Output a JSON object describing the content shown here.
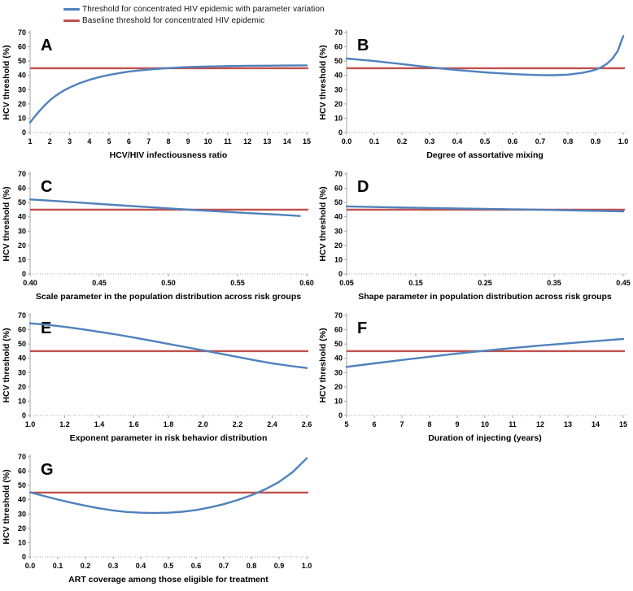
{
  "colors": {
    "variation_line": "#4F81BD",
    "baseline_line": "#C0504D",
    "axis": "#A6A6A6",
    "text": "#000000"
  },
  "legend": {
    "items": [
      {
        "name": "variation",
        "label": "Threshold for concentrated HIV epidemic with parameter variation",
        "color": "#4F81BD"
      },
      {
        "name": "baseline",
        "label": "Baseline threshold for concentrated HIV epidemic",
        "color": "#C0504D"
      }
    ]
  },
  "chart_data": [
    {
      "panel": "A",
      "type": "line",
      "xlabel": "HCV/HIV infectiousness ratio",
      "ylabel": "HCV threshold (%)",
      "xlim": [
        1,
        15
      ],
      "ylim": [
        0,
        70
      ],
      "xticks": [
        "1",
        "2",
        "3",
        "4",
        "5",
        "6",
        "7",
        "8",
        "9",
        "10",
        "11",
        "12",
        "13",
        "14",
        "15"
      ],
      "yticks": [
        "0",
        "10",
        "20",
        "30",
        "40",
        "50",
        "60",
        "70"
      ],
      "baseline": 45,
      "curve": {
        "x": [
          1,
          1.25,
          1.5,
          1.75,
          2,
          2.25,
          2.5,
          2.75,
          3,
          3.5,
          4,
          4.5,
          5,
          5.5,
          6,
          6.5,
          7,
          7.5,
          8,
          9,
          10,
          11,
          12,
          13,
          14,
          15
        ],
        "y": [
          7,
          11.5,
          15.5,
          19.2,
          22.5,
          25.3,
          27.6,
          29.7,
          31.5,
          34.5,
          36.9,
          38.8,
          40.3,
          41.6,
          42.6,
          43.4,
          44.1,
          44.7,
          45.1,
          45.8,
          46.2,
          46.5,
          46.7,
          46.8,
          46.9,
          47
        ]
      }
    },
    {
      "panel": "B",
      "type": "line",
      "xlabel": "Degree of assortative mixing",
      "ylabel": "HCV threshold (%)",
      "xlim": [
        0,
        1
      ],
      "ylim": [
        0,
        70
      ],
      "xticks": [
        "0.0",
        "0.1",
        "0.2",
        "0.3",
        "0.4",
        "0.5",
        "0.6",
        "0.7",
        "0.8",
        "0.9",
        "1.0"
      ],
      "yticks": [
        "0",
        "10",
        "20",
        "30",
        "40",
        "50",
        "60",
        "70"
      ],
      "baseline": 45,
      "curve": {
        "x": [
          0,
          0.05,
          0.1,
          0.15,
          0.2,
          0.25,
          0.3,
          0.35,
          0.4,
          0.45,
          0.5,
          0.55,
          0.6,
          0.65,
          0.7,
          0.75,
          0.8,
          0.85,
          0.88,
          0.9,
          0.92,
          0.94,
          0.96,
          0.98,
          1.0
        ],
        "y": [
          51.8,
          50.9,
          50,
          49,
          47.9,
          46.8,
          45.7,
          44.7,
          43.7,
          42.9,
          42.1,
          41.5,
          40.9,
          40.5,
          40.2,
          40.1,
          40.5,
          41.7,
          42.9,
          44.0,
          45.6,
          48,
          51.5,
          57,
          67.5
        ]
      }
    },
    {
      "panel": "C",
      "type": "line",
      "xlabel": "Scale parameter in the population distribution across risk groups",
      "ylabel": "HCV threshold (%)",
      "xlim": [
        0.4,
        0.6
      ],
      "ylim": [
        0,
        70
      ],
      "xticks": [
        "0.40",
        "0.45",
        "0.50",
        "0.55",
        "0.60"
      ],
      "yticks": [
        "0",
        "10",
        "20",
        "30",
        "40",
        "50",
        "60",
        "70"
      ],
      "baseline": 45,
      "curve": {
        "x": [
          0.4,
          0.42,
          0.44,
          0.46,
          0.48,
          0.5,
          0.52,
          0.54,
          0.56,
          0.58,
          0.595
        ],
        "y": [
          52.2,
          51.0,
          49.7,
          48.4,
          47.1,
          45.9,
          44.7,
          43.6,
          42.5,
          41.5,
          40.6
        ]
      }
    },
    {
      "panel": "D",
      "type": "line",
      "xlabel": "Shape parameter in population distribution across risk groups",
      "ylabel": "HCV threshold (%)",
      "xlim": [
        0.05,
        0.45
      ],
      "ylim": [
        0,
        70
      ],
      "xticks": [
        "0.05",
        "0.15",
        "0.25",
        "0.35",
        "0.45"
      ],
      "yticks": [
        "0",
        "10",
        "20",
        "30",
        "40",
        "50",
        "60",
        "70"
      ],
      "baseline": 45,
      "curve": {
        "x": [
          0.05,
          0.1,
          0.15,
          0.2,
          0.25,
          0.3,
          0.35,
          0.4,
          0.45
        ],
        "y": [
          47.3,
          46.8,
          46.3,
          45.9,
          45.6,
          45.2,
          44.8,
          44.3,
          43.8
        ]
      }
    },
    {
      "panel": "E",
      "type": "line",
      "xlabel": "Exponent parameter in risk behavior distribution",
      "ylabel": "HCV threshold (%)",
      "xlim": [
        1.0,
        2.6
      ],
      "ylim": [
        0,
        70
      ],
      "xticks": [
        "1.0",
        "1.2",
        "1.4",
        "1.6",
        "1.8",
        "2.0",
        "2.2",
        "2.4",
        "2.6"
      ],
      "yticks": [
        "0",
        "10",
        "20",
        "30",
        "40",
        "50",
        "60",
        "70"
      ],
      "baseline": 45,
      "curve": {
        "x": [
          1.0,
          1.1,
          1.2,
          1.3,
          1.4,
          1.5,
          1.6,
          1.7,
          1.8,
          1.9,
          2.0,
          2.1,
          2.2,
          2.3,
          2.4,
          2.5,
          2.6
        ],
        "y": [
          64.5,
          63.4,
          62.0,
          60.4,
          58.5,
          56.6,
          54.5,
          52.3,
          50.0,
          47.8,
          45.6,
          43.2,
          40.9,
          38.6,
          36.5,
          34.7,
          33.2
        ]
      }
    },
    {
      "panel": "F",
      "type": "line",
      "xlabel": "Duration of injecting (years)",
      "ylabel": "HCV threshold (%)",
      "xlim": [
        5,
        15
      ],
      "ylim": [
        0,
        70
      ],
      "xticks": [
        "5",
        "6",
        "7",
        "8",
        "9",
        "10",
        "11",
        "12",
        "13",
        "14",
        "15"
      ],
      "yticks": [
        "0",
        "10",
        "20",
        "30",
        "40",
        "50",
        "60",
        "70"
      ],
      "baseline": 45,
      "curve": {
        "x": [
          5,
          6,
          7,
          8,
          9,
          10,
          11,
          12,
          13,
          14,
          15
        ],
        "y": [
          34,
          36.4,
          38.8,
          41.1,
          43.3,
          45.3,
          47.2,
          48.9,
          50.5,
          52.0,
          53.5
        ]
      }
    },
    {
      "panel": "G",
      "type": "line",
      "xlabel": "ART coverage among those eligible for treatment",
      "ylabel": "HCV threshold (%)",
      "xlim": [
        0,
        1
      ],
      "ylim": [
        0,
        70
      ],
      "xticks": [
        "0.0",
        "0.1",
        "0.2",
        "0.3",
        "0.4",
        "0.5",
        "0.6",
        "0.7",
        "0.8",
        "0.9",
        "1.0"
      ],
      "yticks": [
        "0",
        "10",
        "20",
        "30",
        "40",
        "50",
        "60",
        "70"
      ],
      "baseline": 45,
      "curve": {
        "x": [
          0,
          0.05,
          0.1,
          0.15,
          0.2,
          0.25,
          0.3,
          0.35,
          0.4,
          0.45,
          0.5,
          0.55,
          0.6,
          0.65,
          0.7,
          0.75,
          0.8,
          0.85,
          0.9,
          0.95,
          1.0
        ],
        "y": [
          45.2,
          42.6,
          40.1,
          37.9,
          35.8,
          34.0,
          32.5,
          31.4,
          30.9,
          30.7,
          30.9,
          31.6,
          32.8,
          34.6,
          36.9,
          39.8,
          43.2,
          47.3,
          52.5,
          59.5,
          69
        ]
      }
    }
  ]
}
